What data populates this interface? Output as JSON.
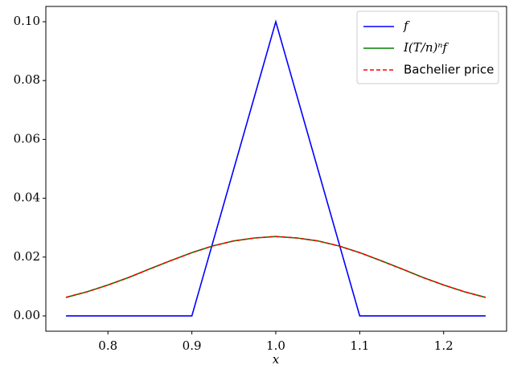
{
  "chart_data": {
    "type": "line",
    "xlabel": "x",
    "xlim": [
      0.726,
      1.275
    ],
    "ylim": [
      -0.0052,
      0.1052
    ],
    "xticks": [
      0.8,
      0.9,
      {
        "value": 1,
        "label": "1.0"
      },
      1.1,
      1.2
    ],
    "yticks": [
      {
        "value": 0,
        "label": "0.00"
      },
      {
        "value": 0.02,
        "label": "0.02"
      },
      {
        "value": 0.04,
        "label": "0.04"
      },
      {
        "value": 0.06,
        "label": "0.06"
      },
      {
        "value": 0.08,
        "label": "0.08"
      },
      {
        "value": 0.1,
        "label": "0.10"
      }
    ],
    "legend": "upper right",
    "series": [
      {
        "name": "f",
        "color": "#0000ff",
        "dash": false,
        "x": [
          0.75,
          0.9,
          1.0,
          1.1,
          1.25
        ],
        "values": [
          0,
          0,
          0.1,
          0,
          0
        ]
      },
      {
        "name": "I(T/n)ⁿf",
        "color": "#008000",
        "dash": false,
        "x": [
          0.75,
          0.775,
          0.8,
          0.825,
          0.85,
          0.875,
          0.9,
          0.925,
          0.95,
          0.975,
          1.0,
          1.025,
          1.05,
          1.075,
          1.1,
          1.125,
          1.15,
          1.175,
          1.2,
          1.225,
          1.25
        ],
        "values": [
          0.0063,
          0.0082,
          0.0105,
          0.0131,
          0.016,
          0.0188,
          0.0215,
          0.0238,
          0.0255,
          0.0265,
          0.027,
          0.0265,
          0.0255,
          0.0238,
          0.0215,
          0.0188,
          0.016,
          0.0131,
          0.0105,
          0.0082,
          0.0063
        ]
      },
      {
        "name": "Bachelier price",
        "color": "#ff0000",
        "dash": true,
        "x": [
          0.75,
          0.775,
          0.8,
          0.825,
          0.85,
          0.875,
          0.9,
          0.925,
          0.95,
          0.975,
          1.0,
          1.025,
          1.05,
          1.075,
          1.1,
          1.125,
          1.15,
          1.175,
          1.2,
          1.225,
          1.25
        ],
        "values": [
          0.0063,
          0.0082,
          0.0105,
          0.0131,
          0.016,
          0.0188,
          0.0215,
          0.0238,
          0.0255,
          0.0265,
          0.027,
          0.0265,
          0.0255,
          0.0238,
          0.0215,
          0.0188,
          0.016,
          0.0131,
          0.0105,
          0.0082,
          0.0063
        ]
      }
    ]
  }
}
